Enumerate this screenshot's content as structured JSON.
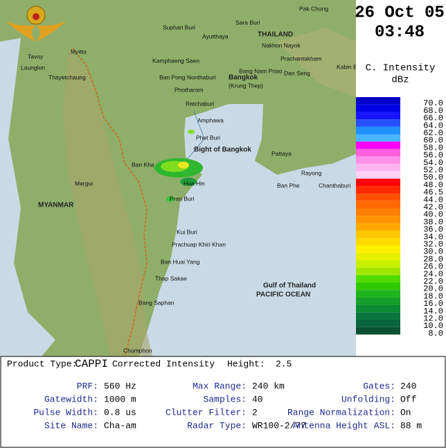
{
  "header": {
    "date": "26 Oct 05",
    "time": "03:48"
  },
  "legend": {
    "title": "C. Intensity",
    "unit": "dBz",
    "labels": [
      "70.0",
      "68.0",
      "66.0",
      "64.0",
      "62.0",
      "60.0",
      "58.0",
      "56.0",
      "54.0",
      "52.0",
      "50.0",
      "48.0",
      "46.5",
      "44.0",
      "42.0",
      "40.0",
      "38.0",
      "36.0",
      "34.0",
      "32.0",
      "30.0",
      "28.0",
      "26.0",
      "24.0",
      "22.0",
      "20.0",
      "18.0",
      "16.0",
      "14.0",
      "12.0",
      "10.0",
      "8.0"
    ]
  },
  "map": {
    "places": [
      "Pak Chong",
      "Suphan Buri",
      "Sara Buri",
      "Ayutthaya",
      "THAILAND",
      "Nakhon Nayok",
      "Tavoy",
      "Myitta",
      "Launglon",
      "Kamphaeng Saen",
      "Nonthaburi",
      "Bang Nam Priao",
      "Prachantakham",
      "Kabin Buri",
      "Thayetchaung",
      "Ban Pong",
      "Bangkok",
      "(Krung Thep)",
      "Photharam",
      "Ratchaburi",
      "Dan Seng",
      "Amphawa",
      "Phet Buri",
      "Bight of Bangkok",
      "Pattaya",
      "Ban Kha",
      "Hua Hin",
      "Mergui",
      "Rayong",
      "Ban Phe",
      "Chanthaburi",
      "Pran Buri",
      "MYANMAR",
      "Kui Buri",
      "Prachuap Khiri Khan",
      "Ban Huai Yang",
      "Thap Sakae",
      "Gulf of Thailand",
      "PACIFIC OCEAN",
      "Bang Saphan",
      "Chumphon"
    ]
  },
  "info": {
    "product_label": "Product Type:",
    "product": "CAPPI",
    "product_desc": "Corrected Intensity",
    "height_label": "Height:",
    "height": "2.5",
    "rows": [
      [
        [
          "PRF:",
          "560 Hz"
        ],
        [
          "Max Range:",
          "240 km"
        ],
        [
          "Gates:",
          "240"
        ]
      ],
      [
        [
          "Gatewidth:",
          "1000 m"
        ],
        [
          "Samples:",
          "40"
        ],
        [
          "Unfolding:",
          "Off"
        ]
      ],
      [
        [
          "Pulse Width:",
          "0.8 us"
        ],
        [
          "Clutter Filter:",
          "2"
        ],
        [
          "Range Normalization:",
          "On"
        ]
      ],
      [
        [
          "Site Name:",
          "Cha-am"
        ],
        [
          "Radar Type:",
          "WR100-2/77"
        ],
        [
          "Antenna Height ASL:",
          "88 m"
        ]
      ]
    ]
  }
}
